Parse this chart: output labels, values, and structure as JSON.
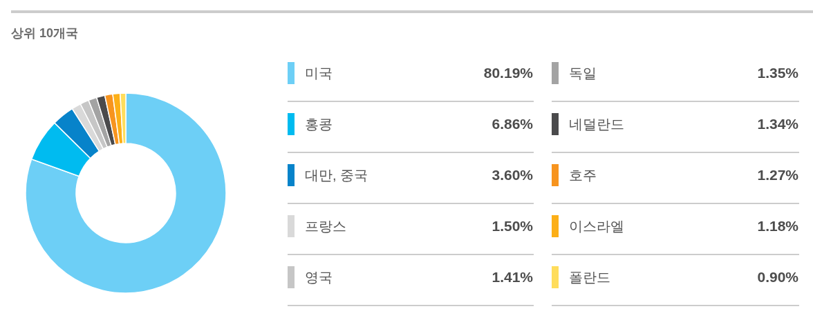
{
  "chart_data": {
    "type": "donut",
    "title": "상위 10개국",
    "categories": [
      "미국",
      "홍콩",
      "대만, 중국",
      "프랑스",
      "영국",
      "독일",
      "네덜란드",
      "호주",
      "이스라엘",
      "폴란드"
    ],
    "values": [
      80.19,
      6.86,
      3.6,
      1.5,
      1.41,
      1.35,
      1.34,
      1.27,
      1.18,
      0.9
    ],
    "colors": [
      "#6dcff6",
      "#00bbf0",
      "#0783ca",
      "#d9d9d9",
      "#c6c6c6",
      "#a3a3a3",
      "#4a4a4c",
      "#f7941e",
      "#fcaf17",
      "#ffdd5c"
    ],
    "value_labels": [
      "80.19%",
      "6.86%",
      "3.60%",
      "1.50%",
      "1.41%",
      "1.35%",
      "1.34%",
      "1.27%",
      "1.18%",
      "0.90%"
    ],
    "legend": "right"
  }
}
